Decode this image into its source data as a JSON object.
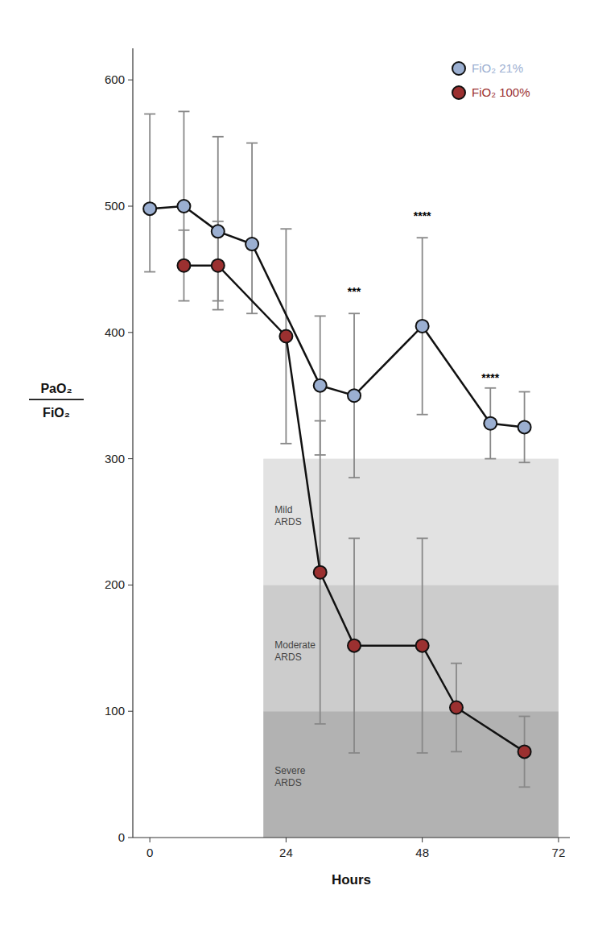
{
  "chart_data": {
    "type": "line",
    "xlabel": "Hours",
    "ylabel": [
      "PaO₂",
      "FiO₂"
    ],
    "xlim": [
      -3,
      74
    ],
    "ylim": [
      0,
      625
    ],
    "xticks": [
      0,
      24,
      48,
      72
    ],
    "yticks": [
      0,
      100,
      200,
      300,
      400,
      500,
      600
    ],
    "grid": false,
    "legend": "upper right",
    "marker": "circle",
    "series": [
      {
        "name": "FiO₂ 21%",
        "color": "#9BAFD1",
        "x": [
          0,
          6,
          12,
          18,
          30,
          36,
          48,
          60,
          66
        ],
        "values": [
          498,
          500,
          480,
          470,
          358,
          350,
          405,
          328,
          325
        ],
        "error_low": [
          50,
          50,
          55,
          55,
          55,
          65,
          70,
          28,
          28
        ],
        "error_high": [
          75,
          75,
          75,
          80,
          55,
          65,
          70,
          28,
          28
        ]
      },
      {
        "name": "FiO₂ 100%",
        "color": "#9B3030",
        "x": [
          6,
          12,
          24,
          30,
          36,
          48,
          54,
          66
        ],
        "values": [
          453,
          453,
          397,
          210,
          152,
          152,
          103,
          68
        ],
        "error_low": [
          28,
          35,
          85,
          120,
          85,
          85,
          35,
          28
        ],
        "error_high": [
          28,
          35,
          85,
          120,
          85,
          85,
          35,
          28
        ]
      }
    ],
    "bands": [
      {
        "x0": 20,
        "x1": 72,
        "y0": 200,
        "y1": 300,
        "color": "#e2e2e2"
      },
      {
        "x0": 20,
        "x1": 72,
        "y0": 100,
        "y1": 200,
        "color": "#cccccc"
      },
      {
        "x0": 20,
        "x1": 72,
        "y0": 0,
        "y1": 100,
        "color": "#b2b2b2"
      }
    ],
    "annotations": [
      {
        "text": "Mild\nARDS",
        "x": 22,
        "y": 255
      },
      {
        "text": "Moderate\nARDS",
        "x": 22,
        "y": 148
      },
      {
        "text": "Severe\nARDS",
        "x": 22,
        "y": 48
      },
      {
        "text": "***",
        "x": 36,
        "y": 428
      },
      {
        "text": "****",
        "x": 48,
        "y": 488
      },
      {
        "text": "****",
        "x": 60,
        "y": 360
      }
    ]
  }
}
